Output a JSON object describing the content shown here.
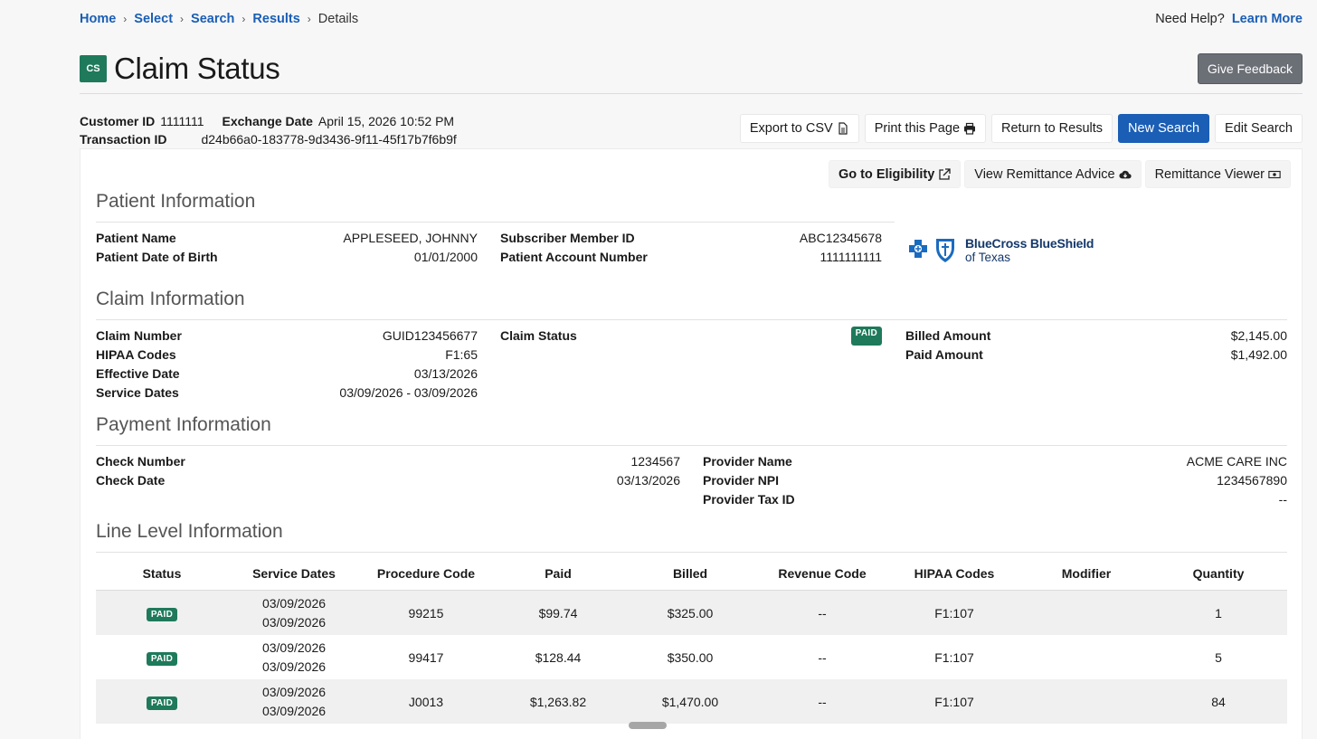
{
  "breadcrumb": {
    "items": [
      "Home",
      "Select",
      "Search",
      "Results"
    ],
    "current": "Details",
    "sep": ">"
  },
  "help": {
    "text": "Need Help?",
    "link": "Learn More"
  },
  "page": {
    "badge": "CS",
    "title": "Claim Status",
    "feedback": "Give Feedback"
  },
  "meta": {
    "customer_id_label": "Customer ID",
    "customer_id": "1111111",
    "exchange_date_label": "Exchange Date",
    "exchange_date": "April 15, 2026 10:52 PM",
    "transaction_id_label": "Transaction ID",
    "transaction_id": "d24b66a0-183778-9d3436-9f11-45f17b7f6b9f"
  },
  "actions": {
    "export": "Export to CSV",
    "print": "Print this Page",
    "return": "Return to Results",
    "new_search": "New Search",
    "edit_search": "Edit Search"
  },
  "card_actions": {
    "eligibility": "Go to Eligibility",
    "remittance_advice": "View Remittance Advice",
    "remittance_viewer": "Remittance Viewer"
  },
  "patient": {
    "title": "Patient Information",
    "name_label": "Patient Name",
    "name": "APPLESEED, JOHNNY",
    "dob_label": "Patient Date of Birth",
    "dob": "01/01/2000",
    "member_label": "Subscriber Member ID",
    "member": "ABC12345678",
    "account_label": "Patient Account Number",
    "account": "1111111111"
  },
  "payer_logo": {
    "line1": "BlueCross BlueShield",
    "line2": "of Texas"
  },
  "claim": {
    "title": "Claim Information",
    "number_label": "Claim Number",
    "number": "GUID123456677",
    "hipaa_label": "HIPAA Codes",
    "hipaa": "F1:65",
    "effective_label": "Effective Date",
    "effective": "03/13/2026",
    "service_label": "Service Dates",
    "service": "03/09/2026 - 03/09/2026",
    "status_label": "Claim Status",
    "status": "PAID",
    "billed_label": "Billed Amount",
    "billed": "$2,145.00",
    "paid_label": "Paid Amount",
    "paid": "$1,492.00"
  },
  "payment": {
    "title": "Payment Information",
    "check_number_label": "Check Number",
    "check_number": "1234567",
    "check_date_label": "Check Date",
    "check_date": "03/13/2026",
    "provider_name_label": "Provider Name",
    "provider_name": "ACME CARE INC",
    "provider_npi_label": "Provider NPI",
    "provider_npi": "1234567890",
    "provider_tax_label": "Provider Tax ID",
    "provider_tax": "--"
  },
  "lines": {
    "title": "Line Level Information",
    "headers": [
      "Status",
      "Service Dates",
      "Procedure Code",
      "Paid",
      "Billed",
      "Revenue Code",
      "HIPAA Codes",
      "Modifier",
      "Quantity"
    ],
    "rows": [
      {
        "status": "PAID",
        "date_from": "03/09/2026",
        "date_to": "03/09/2026",
        "procedure": "99215",
        "paid": "$99.74",
        "billed": "$325.00",
        "revenue": "--",
        "hipaa": "F1:107",
        "modifier": "",
        "quantity": "1"
      },
      {
        "status": "PAID",
        "date_from": "03/09/2026",
        "date_to": "03/09/2026",
        "procedure": "99417",
        "paid": "$128.44",
        "billed": "$350.00",
        "revenue": "--",
        "hipaa": "F1:107",
        "modifier": "",
        "quantity": "5"
      },
      {
        "status": "PAID",
        "date_from": "03/09/2026",
        "date_to": "03/09/2026",
        "procedure": "J0013",
        "paid": "$1,263.82",
        "billed": "$1,470.00",
        "revenue": "--",
        "hipaa": "F1:107",
        "modifier": "",
        "quantity": "84"
      }
    ]
  },
  "colors": {
    "accent": "#1a5eb5",
    "paid_badge": "#1e7a5a",
    "logo": "#14386b"
  }
}
